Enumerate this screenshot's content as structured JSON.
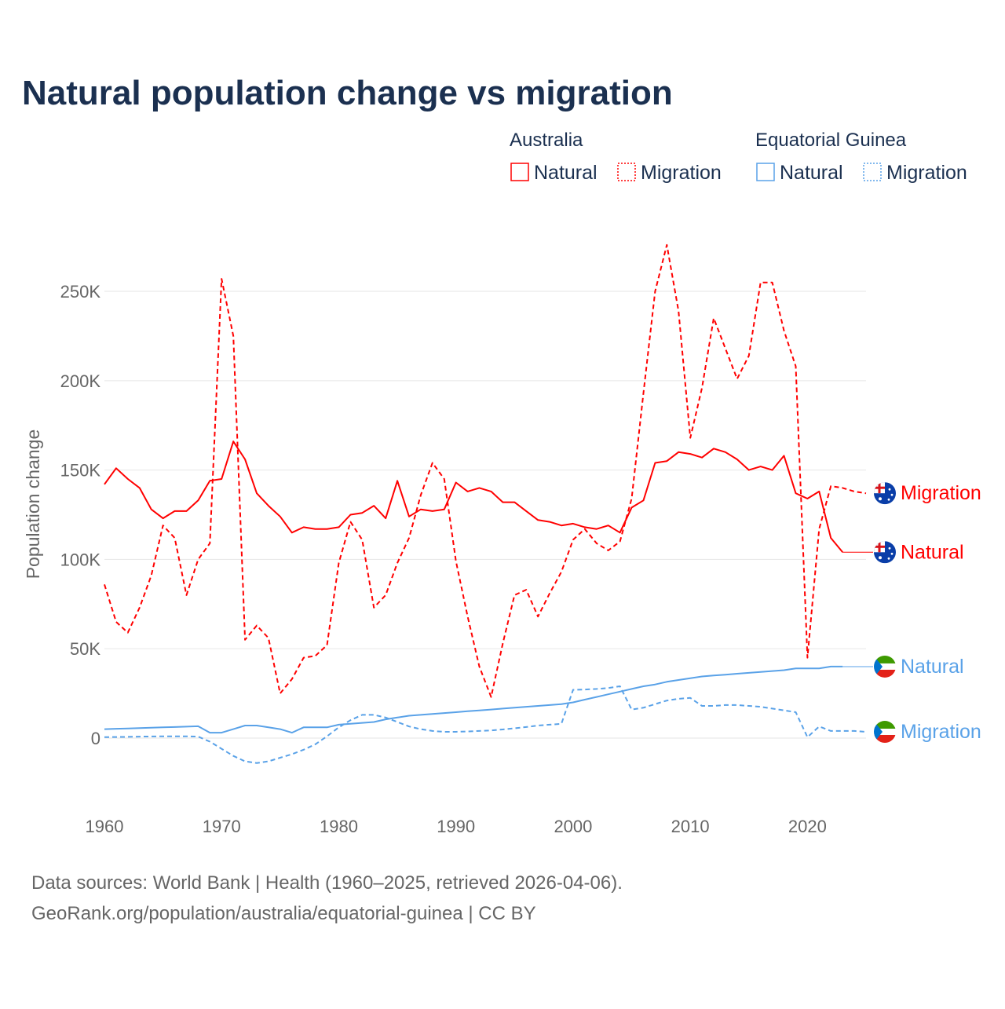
{
  "title": "Natural population change vs migration",
  "legend": {
    "groups": [
      {
        "name": "Australia",
        "items": [
          "Natural",
          "Migration"
        ],
        "color": "#ff0000"
      },
      {
        "name": "Equatorial Guinea",
        "items": [
          "Natural",
          "Migration"
        ],
        "color": "#5aa2e8"
      }
    ]
  },
  "footer": {
    "line1": "Data sources: World Bank | Health (1960–2025, retrieved 2026-04-06).",
    "line2": "GeoRank.org/population/australia/equatorial-guinea | CC BY"
  },
  "chart_data": {
    "type": "line",
    "title": "Natural population change vs migration",
    "xlabel": "",
    "ylabel": "Population change",
    "xlim": [
      1960,
      2025
    ],
    "ylim": [
      -40000,
      290000
    ],
    "x_ticks": [
      1960,
      1970,
      1980,
      1990,
      2000,
      2010,
      2020
    ],
    "x_tick_labels": [
      "1960",
      "1970",
      "1980",
      "1990",
      "2000",
      "2010",
      "2020"
    ],
    "y_ticks": [
      0,
      50000,
      100000,
      150000,
      200000,
      250000
    ],
    "y_tick_labels": [
      "0",
      "50K",
      "100K",
      "150K",
      "200K",
      "250K"
    ],
    "grid": true,
    "legend_placement": "top-right",
    "series": [
      {
        "name": "Australia Natural",
        "end_label": "Natural",
        "color": "#ff0000",
        "dash": false,
        "start_year": 1960,
        "values": [
          142000,
          151000,
          145000,
          140000,
          128000,
          123000,
          127000,
          127000,
          133000,
          144000,
          145000,
          166000,
          156000,
          137000,
          130000,
          124000,
          115000,
          118000,
          117000,
          117000,
          118000,
          125000,
          126000,
          130000,
          123000,
          144000,
          124000,
          128000,
          127000,
          128000,
          143000,
          138000,
          140000,
          138000,
          132000,
          132000,
          127000,
          122000,
          121000,
          119000,
          120000,
          118000,
          117000,
          119000,
          115000,
          129000,
          133000,
          154000,
          155000,
          160000,
          159000,
          157000,
          162000,
          160000,
          156000,
          150000,
          152000,
          150000,
          158000,
          137000,
          134000,
          138000,
          112000,
          104000
        ]
      },
      {
        "name": "Australia Migration",
        "end_label": "Migration",
        "color": "#ff0000",
        "dash": true,
        "start_year": 1960,
        "values": [
          86000,
          65000,
          59000,
          73000,
          91000,
          119000,
          112000,
          80000,
          100000,
          109000,
          257000,
          225000,
          55000,
          63000,
          56000,
          25000,
          33000,
          45000,
          46000,
          52000,
          98000,
          121000,
          111000,
          73000,
          80000,
          98000,
          112000,
          136000,
          154000,
          145000,
          99000,
          68000,
          40000,
          23000,
          53000,
          80000,
          83000,
          68000,
          81000,
          93000,
          111000,
          117000,
          109000,
          105000,
          110000,
          134000,
          193000,
          250000,
          276000,
          239000,
          168000,
          196000,
          235000,
          218000,
          201000,
          214000,
          255000,
          255000,
          228000,
          208000,
          45000,
          117000,
          141000,
          140000,
          138000,
          137000
        ]
      },
      {
        "name": "Equatorial Guinea Natural",
        "end_label": "Natural",
        "color": "#5aa2e8",
        "dash": false,
        "start_year": 1960,
        "values": [
          5000,
          5200,
          5400,
          5600,
          5800,
          6000,
          6200,
          6400,
          6600,
          3000,
          3000,
          5000,
          7000,
          7000,
          6000,
          5000,
          3000,
          6000,
          6000,
          6000,
          7500,
          8000,
          8500,
          9000,
          10500,
          11500,
          12500,
          13000,
          13500,
          14000,
          14500,
          15000,
          15500,
          16000,
          16500,
          17000,
          17500,
          18000,
          18500,
          19000,
          20000,
          21500,
          23000,
          24500,
          26000,
          27500,
          29000,
          30000,
          31500,
          32500,
          33500,
          34500,
          35000,
          35500,
          36000,
          36500,
          37000,
          37500,
          38000,
          39000,
          39000,
          39000,
          40000,
          40000
        ]
      },
      {
        "name": "Equatorial Guinea Migration",
        "end_label": "Migration",
        "color": "#5aa2e8",
        "dash": true,
        "start_year": 1960,
        "values": [
          500,
          600,
          700,
          800,
          900,
          1000,
          1000,
          1000,
          800,
          -2000,
          -6000,
          -10000,
          -13000,
          -14000,
          -13000,
          -11000,
          -9000,
          -6500,
          -3500,
          1000,
          6000,
          10000,
          13000,
          13000,
          11500,
          9000,
          6500,
          5000,
          4000,
          3500,
          3500,
          3700,
          4000,
          4300,
          4800,
          5500,
          6200,
          7000,
          7500,
          8000,
          27000,
          27200,
          27500,
          28000,
          29000,
          16000,
          17000,
          19000,
          21000,
          22000,
          22500,
          18000,
          18000,
          18500,
          18500,
          18000,
          17500,
          16500,
          15500,
          14500,
          500,
          6500,
          4000,
          4000,
          4000,
          3500
        ]
      }
    ]
  }
}
